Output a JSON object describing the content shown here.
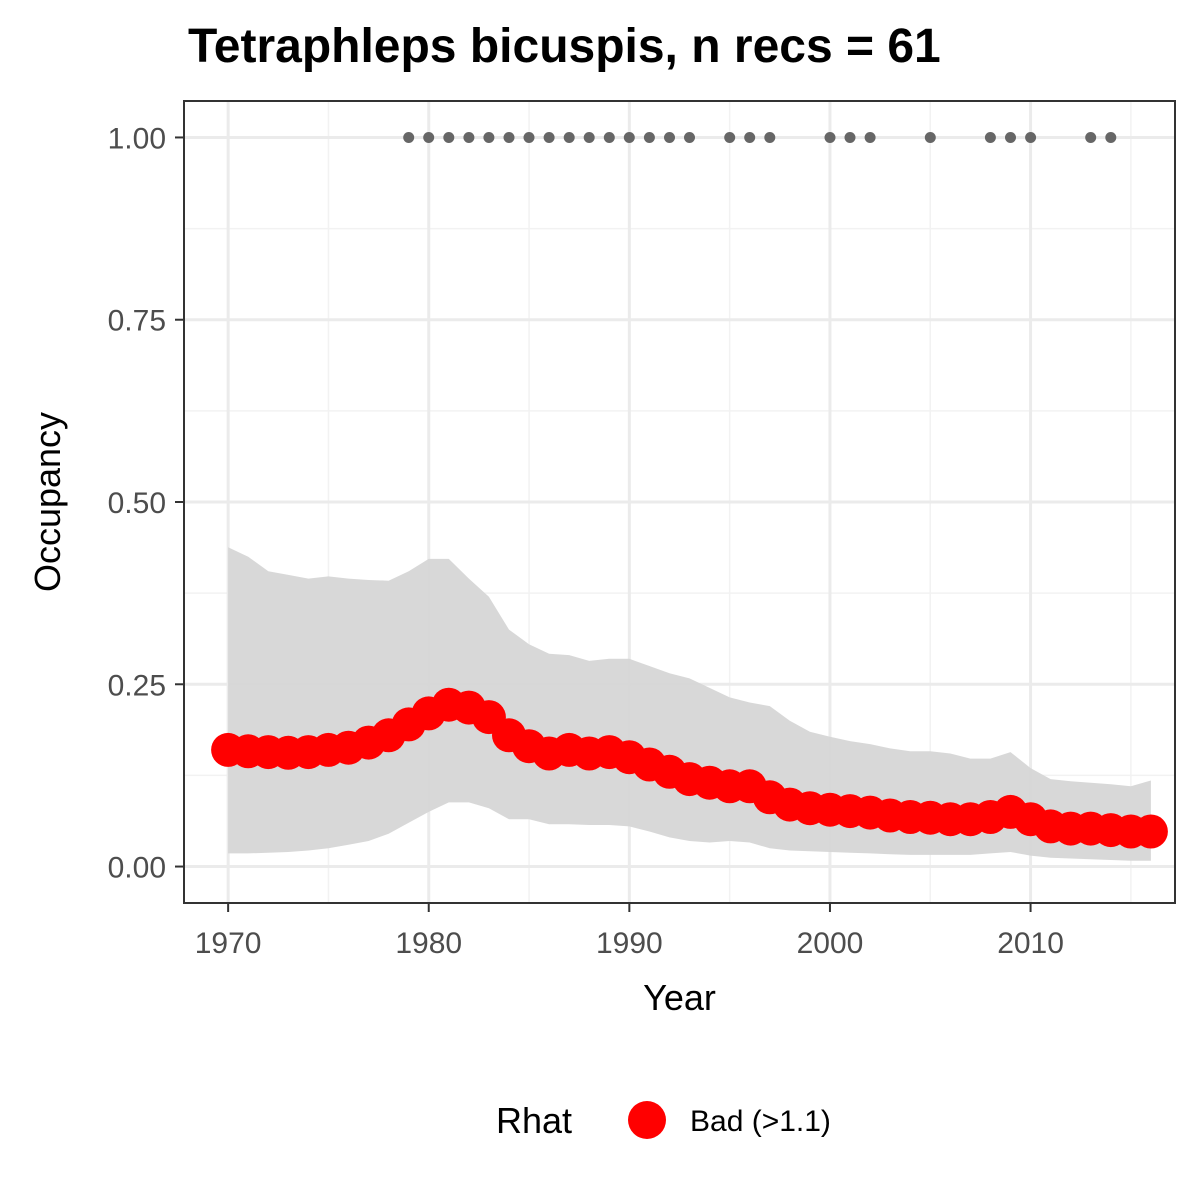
{
  "chart_data": {
    "type": "line",
    "title": "Tetraphleps bicuspis, n recs = 61",
    "xlabel": "Year",
    "ylabel": "Occupancy",
    "xlim": [
      1967.8,
      2017.2
    ],
    "ylim": [
      -0.05,
      1.05
    ],
    "x_ticks": [
      1970,
      1980,
      1990,
      2000,
      2010
    ],
    "x_tick_labels": [
      "1970",
      "1980",
      "1990",
      "2000",
      "2010"
    ],
    "y_ticks": [
      0,
      0.25,
      0.5,
      0.75,
      1.0
    ],
    "y_tick_labels": [
      "0.00",
      "0.25",
      "0.50",
      "0.75",
      "1.00"
    ],
    "grid": true,
    "colors": {
      "point": "#ff0000",
      "ribbon": "#d6d6d6",
      "record_dot": "#666666"
    },
    "x": [
      1970,
      1971,
      1972,
      1973,
      1974,
      1975,
      1976,
      1977,
      1978,
      1979,
      1980,
      1981,
      1982,
      1983,
      1984,
      1985,
      1986,
      1987,
      1988,
      1989,
      1990,
      1991,
      1992,
      1993,
      1994,
      1995,
      1996,
      1997,
      1998,
      1999,
      2000,
      2001,
      2002,
      2003,
      2004,
      2005,
      2006,
      2007,
      2008,
      2009,
      2010,
      2011,
      2012,
      2013,
      2014,
      2015,
      2016
    ],
    "series": [
      {
        "values": [
          0.16,
          0.158,
          0.157,
          0.156,
          0.157,
          0.16,
          0.163,
          0.17,
          0.18,
          0.195,
          0.21,
          0.222,
          0.218,
          0.205,
          0.18,
          0.165,
          0.155,
          0.16,
          0.155,
          0.157,
          0.15,
          0.14,
          0.13,
          0.12,
          0.115,
          0.11,
          0.11,
          0.095,
          0.085,
          0.08,
          0.078,
          0.076,
          0.074,
          0.07,
          0.068,
          0.067,
          0.065,
          0.065,
          0.068,
          0.075,
          0.065,
          0.055,
          0.052,
          0.052,
          0.05,
          0.048,
          0.048
        ],
        "lower": [
          0.018,
          0.018,
          0.019,
          0.02,
          0.022,
          0.025,
          0.03,
          0.035,
          0.045,
          0.06,
          0.075,
          0.088,
          0.088,
          0.08,
          0.065,
          0.065,
          0.058,
          0.058,
          0.057,
          0.057,
          0.055,
          0.048,
          0.04,
          0.035,
          0.033,
          0.035,
          0.033,
          0.025,
          0.022,
          0.021,
          0.02,
          0.019,
          0.018,
          0.017,
          0.016,
          0.016,
          0.016,
          0.016,
          0.018,
          0.02,
          0.015,
          0.012,
          0.011,
          0.01,
          0.009,
          0.008,
          0.008
        ],
        "upper": [
          0.438,
          0.425,
          0.405,
          0.4,
          0.395,
          0.398,
          0.395,
          0.393,
          0.392,
          0.405,
          0.422,
          0.422,
          0.395,
          0.37,
          0.325,
          0.305,
          0.292,
          0.29,
          0.282,
          0.285,
          0.285,
          0.275,
          0.265,
          0.258,
          0.245,
          0.232,
          0.225,
          0.22,
          0.2,
          0.185,
          0.178,
          0.172,
          0.168,
          0.162,
          0.158,
          0.158,
          0.155,
          0.148,
          0.148,
          0.157,
          0.135,
          0.12,
          0.117,
          0.115,
          0.113,
          0.11,
          0.118
        ]
      }
    ],
    "record_years": [
      1979,
      1980,
      1981,
      1982,
      1983,
      1984,
      1985,
      1986,
      1987,
      1988,
      1989,
      1990,
      1991,
      1992,
      1993,
      1995,
      1996,
      1997,
      2000,
      2001,
      2002,
      2005,
      2008,
      2009,
      2010,
      2013,
      2014
    ],
    "record_value": 1.0,
    "legend": {
      "title": "Rhat",
      "label": "Bad (>1.1)",
      "position": "bottom"
    }
  }
}
